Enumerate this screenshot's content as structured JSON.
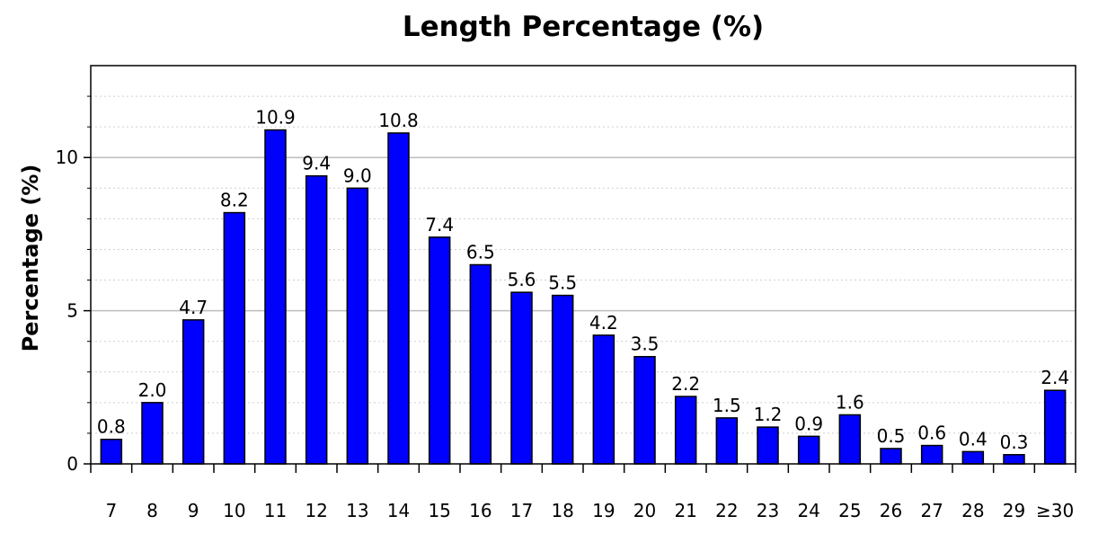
{
  "chart_data": {
    "type": "bar",
    "title": "Length Percentage (%)",
    "xlabel": "",
    "ylabel": "Percentage (%)",
    "categories": [
      "7",
      "8",
      "9",
      "10",
      "11",
      "12",
      "13",
      "14",
      "15",
      "16",
      "17",
      "18",
      "19",
      "20",
      "21",
      "22",
      "23",
      "24",
      "25",
      "26",
      "27",
      "28",
      "29",
      "≥30"
    ],
    "values": [
      0.8,
      2.0,
      4.7,
      8.2,
      10.9,
      9.4,
      9.0,
      10.8,
      7.4,
      6.5,
      5.6,
      5.5,
      4.2,
      3.5,
      2.2,
      1.5,
      1.2,
      0.9,
      1.6,
      0.5,
      0.6,
      0.4,
      0.3,
      2.4
    ],
    "data_labels": [
      "0.8",
      "2.0",
      "4.7",
      "8.2",
      "10.9",
      "9.4",
      "9.0",
      "10.8",
      "7.4",
      "6.5",
      "5.6",
      "5.5",
      "4.2",
      "3.5",
      "2.2",
      "1.5",
      "1.2",
      "0.9",
      "1.6",
      "0.5",
      "0.6",
      "0.4",
      "0.3",
      "2.4"
    ],
    "y_ticks": [
      0,
      5,
      10
    ],
    "y_tick_labels": [
      "0",
      "5",
      "10"
    ],
    "ylim": [
      0,
      13
    ],
    "grid": true,
    "bar_color": "#0000ff",
    "bar_edge_color": "#000000"
  }
}
